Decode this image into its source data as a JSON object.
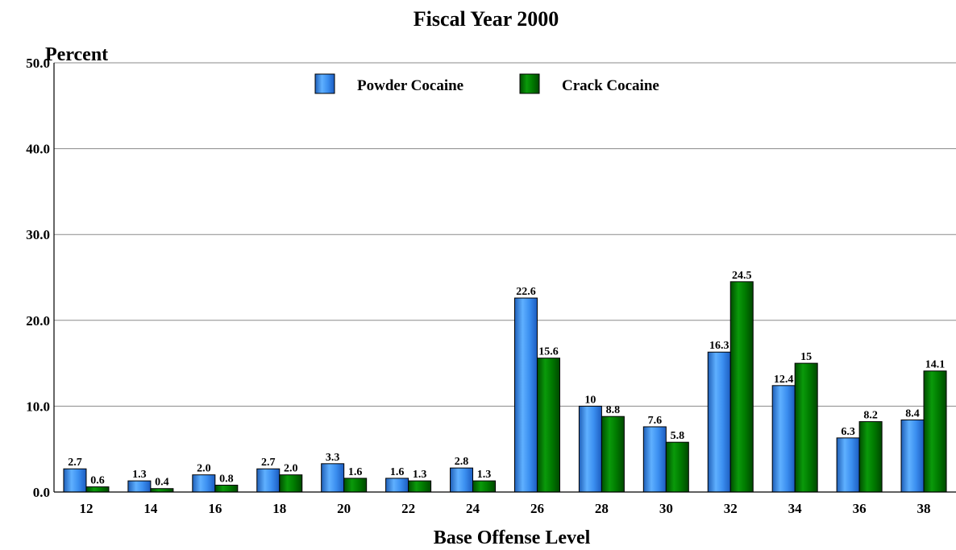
{
  "chart_data": {
    "type": "bar",
    "title": "Fiscal Year 2000",
    "ylabel": "Percent",
    "xlabel": "Base Offense Level",
    "ylim": [
      0,
      50
    ],
    "yticks": [
      "0.0",
      "10.0",
      "20.0",
      "30.0",
      "40.0",
      "50.0"
    ],
    "grid": true,
    "legend_position": "top-center",
    "categories": [
      "12",
      "14",
      "16",
      "18",
      "20",
      "22",
      "24",
      "26",
      "28",
      "30",
      "32",
      "34",
      "36",
      "38"
    ],
    "series": [
      {
        "name": "Powder Cocaine",
        "color": "#3b8ff0",
        "values": [
          2.7,
          1.3,
          2.0,
          2.7,
          3.3,
          1.6,
          2.8,
          22.6,
          10,
          7.6,
          16.3,
          12.4,
          6.3,
          8.4
        ],
        "labels": [
          "2.7",
          "1.3",
          "2.0",
          "2.7",
          "3.3",
          "1.6",
          "2.8",
          "22.6",
          "10",
          "7.6",
          "16.3",
          "12.4",
          "6.3",
          "8.4"
        ]
      },
      {
        "name": "Crack Cocaine",
        "color": "#007a00",
        "values": [
          0.6,
          0.4,
          0.8,
          2.0,
          1.6,
          1.3,
          1.3,
          15.6,
          8.8,
          5.8,
          24.5,
          15,
          8.2,
          14.1
        ],
        "labels": [
          "0.6",
          "0.4",
          "0.8",
          "2.0",
          "1.6",
          "1.3",
          "1.3",
          "15.6",
          "8.8",
          "5.8",
          "24.5",
          "15",
          "8.2",
          "14.1"
        ]
      }
    ]
  }
}
